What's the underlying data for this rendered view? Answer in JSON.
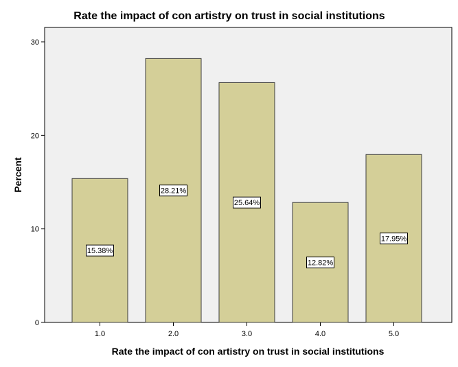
{
  "chart_data": {
    "type": "bar",
    "title": "Rate the impact of con artistry on trust in social institutions",
    "xlabel": "Rate the impact of con artistry on trust in social institutions",
    "ylabel": "Percent",
    "categories": [
      "1.0",
      "2.0",
      "3.0",
      "4.0",
      "5.0"
    ],
    "values": [
      15.38,
      28.21,
      25.64,
      12.82,
      17.95
    ],
    "data_labels": [
      "15.38%",
      "28.21%",
      "25.64%",
      "12.82%",
      "17.95%"
    ],
    "ylim": [
      0,
      30
    ],
    "yticks": [
      0,
      10,
      20,
      30
    ],
    "grid": false,
    "legend": "none",
    "colors": {
      "bar_fill": "#d4cf98",
      "bar_stroke": "#3c3c3c",
      "plot_background": "#f0f0f0",
      "axis": "#000000"
    }
  }
}
